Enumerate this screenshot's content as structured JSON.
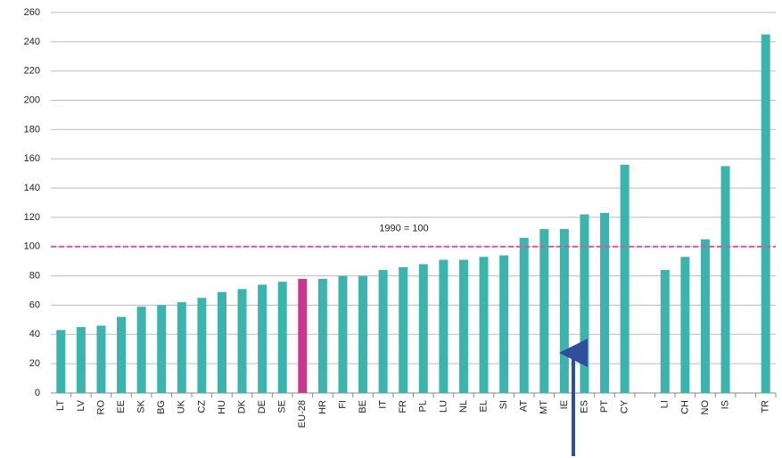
{
  "chart_data": {
    "type": "bar",
    "categories": [
      "LT",
      "LV",
      "RO",
      "EE",
      "SK",
      "BG",
      "UK",
      "CZ",
      "HU",
      "DK",
      "DE",
      "SE",
      "EU-28",
      "HR",
      "FI",
      "BE",
      "IT",
      "FR",
      "PL",
      "LU",
      "NL",
      "EL",
      "SI",
      "AT",
      "MT",
      "IE",
      "ES",
      "PT",
      "CY",
      null,
      "LI",
      "CH",
      "NO",
      "IS",
      null,
      "TR"
    ],
    "values": [
      43,
      45,
      46,
      52,
      59,
      60,
      62,
      65,
      69,
      71,
      74,
      76,
      78,
      78,
      80,
      80,
      84,
      86,
      88,
      91,
      91,
      93,
      94,
      106,
      112,
      112,
      122,
      123,
      156,
      null,
      84,
      93,
      105,
      155,
      null,
      245
    ],
    "colors": [
      "#3cb4ae",
      "#3cb4ae",
      "#3cb4ae",
      "#3cb4ae",
      "#3cb4ae",
      "#3cb4ae",
      "#3cb4ae",
      "#3cb4ae",
      "#3cb4ae",
      "#3cb4ae",
      "#3cb4ae",
      "#3cb4ae",
      "#c8388f",
      "#3cb4ae",
      "#3cb4ae",
      "#3cb4ae",
      "#3cb4ae",
      "#3cb4ae",
      "#3cb4ae",
      "#3cb4ae",
      "#3cb4ae",
      "#3cb4ae",
      "#3cb4ae",
      "#3cb4ae",
      "#3cb4ae",
      "#3cb4ae",
      "#3cb4ae",
      "#3cb4ae",
      "#3cb4ae",
      null,
      "#3cb4ae",
      "#3cb4ae",
      "#3cb4ae",
      "#3cb4ae",
      null,
      "#3cb4ae"
    ],
    "ylim": [
      0,
      260
    ],
    "yticks": [
      0,
      20,
      40,
      60,
      80,
      100,
      120,
      140,
      160,
      180,
      200,
      220,
      240,
      260
    ],
    "grid": true,
    "reference_line": {
      "value": 100,
      "label": "1990 = 100",
      "color": "#d05aa0"
    }
  }
}
